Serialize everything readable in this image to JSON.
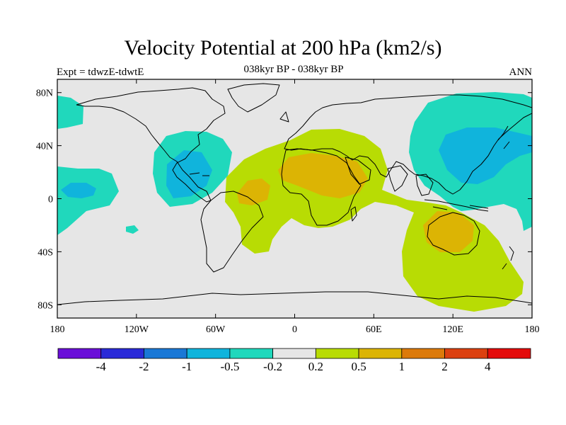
{
  "title": "Velocity Potential at 200 hPa (km2/s)",
  "subtitle": "038kyr BP - 038kyr BP",
  "left_label": "Expt = tdwzE-tdwtE",
  "right_label": "ANN",
  "lon_ticks": [
    "180",
    "120W",
    "60W",
    "0",
    "60E",
    "120E",
    "180"
  ],
  "lat_ticks": [
    "80N",
    "40N",
    "0",
    "40S",
    "80S"
  ],
  "colorbar": {
    "colors": [
      "#6a0fd8",
      "#2a2ad8",
      "#1a78d6",
      "#10b4dc",
      "#20d8bc",
      "#e6e6e6",
      "#b8dc04",
      "#dcb404",
      "#dc7a0a",
      "#dc4010",
      "#e40a0a"
    ],
    "labels": [
      "-4",
      "-2",
      "-1",
      "-0.5",
      "-0.2",
      "0.2",
      "0.5",
      "1",
      "2",
      "4"
    ]
  },
  "map_colors": {
    "background": "#e6e6e6",
    "neg_light": "#20d8bc",
    "neg_mid": "#10b4dc",
    "pos_light": "#b8dc04",
    "pos_mid": "#dcb404",
    "coast": "#000000"
  }
}
